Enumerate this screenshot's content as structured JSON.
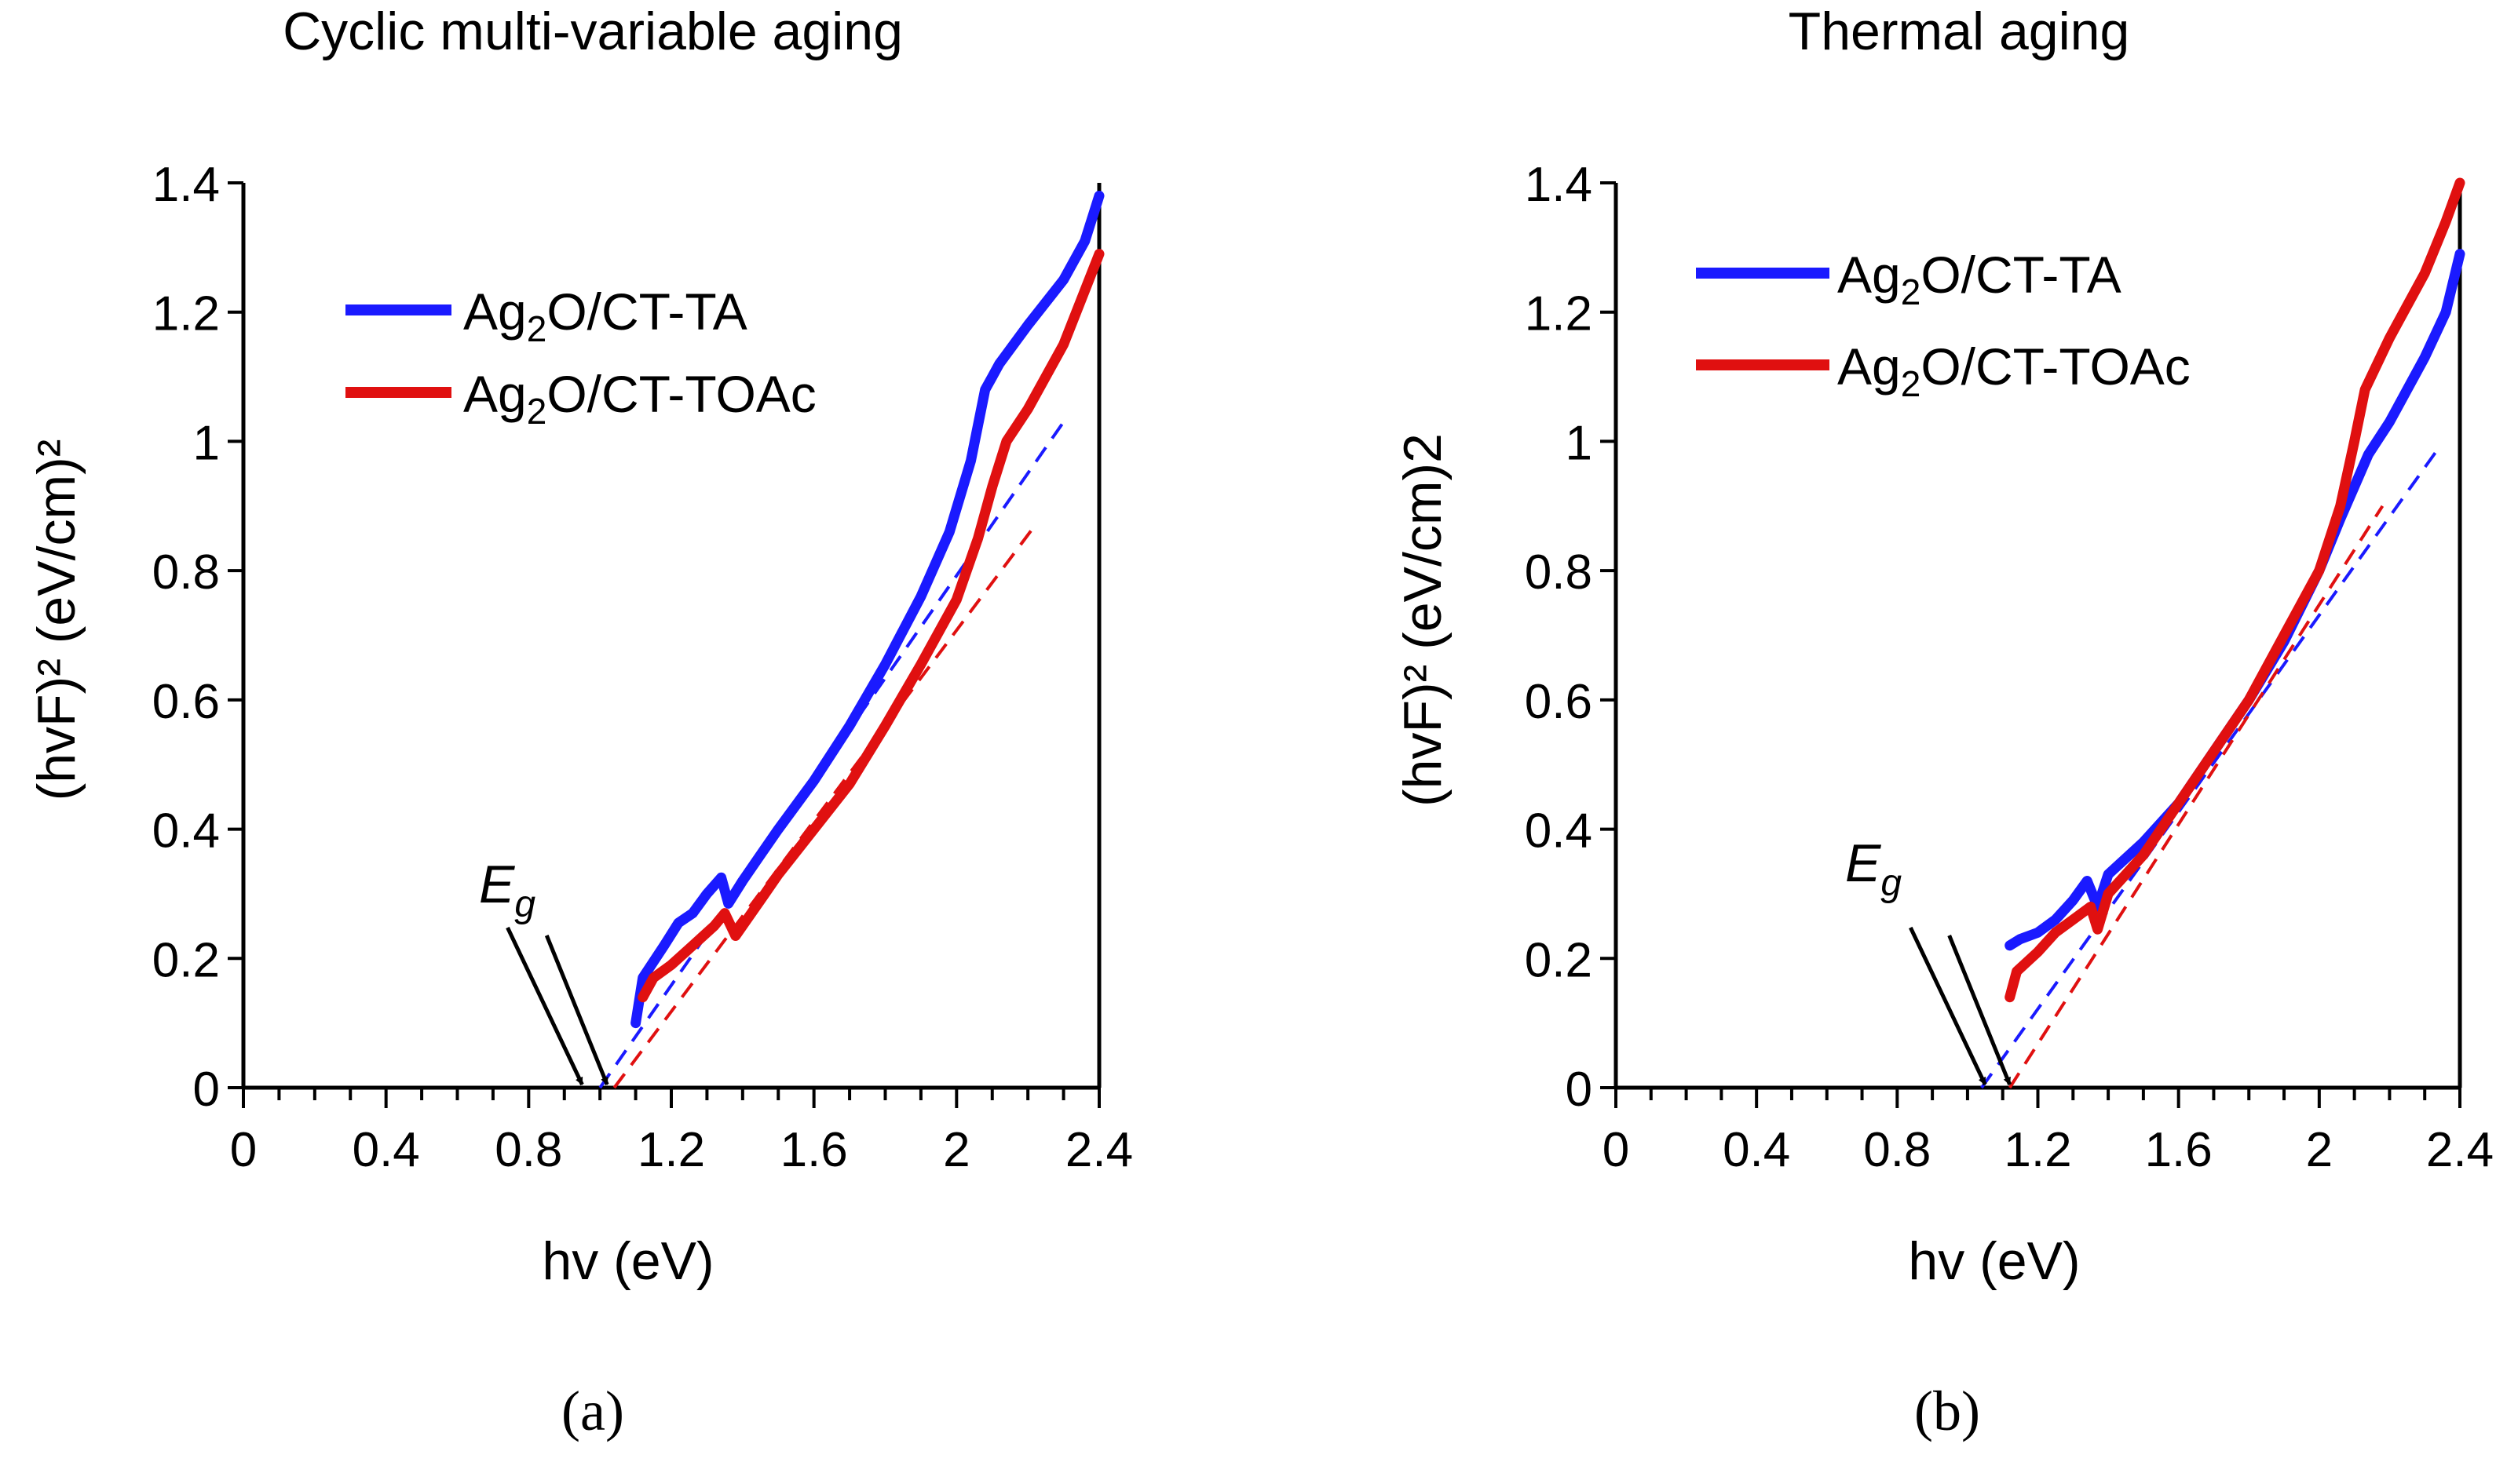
{
  "figure": {
    "panel_labels": [
      "(a)",
      "(b)"
    ],
    "colors": {
      "ta": "#1a1aff",
      "toac": "#e01010",
      "axis": "#000000"
    }
  },
  "chart_data": [
    {
      "type": "line",
      "panel_label": "(a)",
      "title": "Cyclic multi-variable aging",
      "xlabel": "hv (eV)",
      "ylabel": "(hvF)² (eV/cm)²",
      "xlim": [
        0,
        2.4
      ],
      "ylim": [
        0,
        1.4
      ],
      "x_ticks": [
        "0",
        "0.4",
        "0.8",
        "1.2",
        "1.6",
        "2",
        "2.4"
      ],
      "y_ticks": [
        "0",
        "0.2",
        "0.4",
        "0.6",
        "0.8",
        "1",
        "1.2",
        "1.4"
      ],
      "legend_position": "top-left",
      "annotation": {
        "label": "E",
        "subscript": "g"
      },
      "series": [
        {
          "name": "Ag2O/CT-TA",
          "legend_main": "Ag",
          "legend_sub": "2",
          "legend_rest": "O/CT-TA",
          "color": "#1a1aff",
          "x": [
            1.1,
            1.12,
            1.18,
            1.22,
            1.26,
            1.3,
            1.34,
            1.36,
            1.4,
            1.45,
            1.5,
            1.6,
            1.7,
            1.8,
            1.9,
            1.98,
            2.04,
            2.08,
            2.1,
            2.12,
            2.2,
            2.3,
            2.36,
            2.4
          ],
          "y": [
            0.1,
            0.17,
            0.22,
            0.255,
            0.27,
            0.3,
            0.325,
            0.285,
            0.32,
            0.36,
            0.4,
            0.475,
            0.56,
            0.655,
            0.76,
            0.86,
            0.97,
            1.08,
            1.1,
            1.12,
            1.18,
            1.25,
            1.31,
            1.38
          ]
        },
        {
          "name": "Ag2O/CT-TOAc",
          "legend_main": "Ag",
          "legend_sub": "2",
          "legend_rest": "O/CT-TOAc",
          "color": "#e01010",
          "x": [
            1.12,
            1.15,
            1.2,
            1.26,
            1.32,
            1.35,
            1.38,
            1.45,
            1.5,
            1.6,
            1.7,
            1.8,
            1.9,
            2.0,
            2.06,
            2.1,
            2.14,
            2.2,
            2.3,
            2.4
          ],
          "y": [
            0.14,
            0.17,
            0.19,
            0.22,
            0.25,
            0.27,
            0.235,
            0.29,
            0.33,
            0.4,
            0.47,
            0.56,
            0.655,
            0.755,
            0.85,
            0.93,
            1.0,
            1.05,
            1.15,
            1.29
          ]
        }
      ],
      "fit_lines": [
        {
          "series": "Ag2O/CT-TA",
          "color": "#1a1aff",
          "x": [
            1.0,
            2.3
          ],
          "y": [
            0.0,
            1.03
          ]
        },
        {
          "series": "Ag2O/CT-TOAc",
          "color": "#e01010",
          "x": [
            1.04,
            2.22
          ],
          "y": [
            0.0,
            0.87
          ]
        }
      ],
      "eg_arrows": [
        0.95,
        1.02
      ]
    },
    {
      "type": "line",
      "panel_label": "(b)",
      "title": "Thermal aging",
      "xlabel": "hv (eV)",
      "ylabel": "(hvF)² (eV/cm)2",
      "xlim": [
        0,
        2.4
      ],
      "ylim": [
        0,
        1.4
      ],
      "x_ticks": [
        "0",
        "0.4",
        "0.8",
        "1.2",
        "1.6",
        "2",
        "2.4"
      ],
      "y_ticks": [
        "0",
        "0.2",
        "0.4",
        "0.6",
        "0.8",
        "1",
        "1.2",
        "1.4"
      ],
      "legend_position": "top-left",
      "annotation": {
        "label": "E",
        "subscript": "g"
      },
      "series": [
        {
          "name": "Ag2O/CT-TA",
          "legend_main": "Ag",
          "legend_sub": "2",
          "legend_rest": "O/CT-TA",
          "color": "#1a1aff",
          "x": [
            1.12,
            1.15,
            1.2,
            1.25,
            1.3,
            1.34,
            1.37,
            1.4,
            1.5,
            1.6,
            1.7,
            1.8,
            1.9,
            2.0,
            2.06,
            2.1,
            2.14,
            2.2,
            2.3,
            2.36,
            2.4
          ],
          "y": [
            0.22,
            0.23,
            0.24,
            0.26,
            0.29,
            0.32,
            0.28,
            0.33,
            0.38,
            0.44,
            0.52,
            0.6,
            0.69,
            0.8,
            0.88,
            0.93,
            0.98,
            1.03,
            1.13,
            1.2,
            1.29
          ]
        },
        {
          "name": "Ag2O/CT-TOAc",
          "legend_main": "Ag",
          "legend_sub": "2",
          "legend_rest": "O/CT-TOAc",
          "color": "#e01010",
          "x": [
            1.12,
            1.14,
            1.2,
            1.25,
            1.3,
            1.35,
            1.37,
            1.4,
            1.5,
            1.6,
            1.7,
            1.8,
            1.9,
            2.0,
            2.06,
            2.1,
            2.13,
            2.2,
            2.3,
            2.36,
            2.4
          ],
          "y": [
            0.14,
            0.18,
            0.21,
            0.24,
            0.26,
            0.28,
            0.245,
            0.3,
            0.36,
            0.44,
            0.52,
            0.6,
            0.7,
            0.8,
            0.9,
            1.0,
            1.08,
            1.16,
            1.26,
            1.34,
            1.4
          ]
        }
      ],
      "fit_lines": [
        {
          "series": "Ag2O/CT-TA",
          "color": "#1a1aff",
          "x": [
            1.04,
            2.34
          ],
          "y": [
            0.0,
            0.99
          ]
        },
        {
          "series": "Ag2O/CT-TOAc",
          "color": "#e01010",
          "x": [
            1.12,
            2.18
          ],
          "y": [
            0.0,
            0.9
          ]
        }
      ],
      "eg_arrows": [
        1.05,
        1.12
      ]
    }
  ]
}
